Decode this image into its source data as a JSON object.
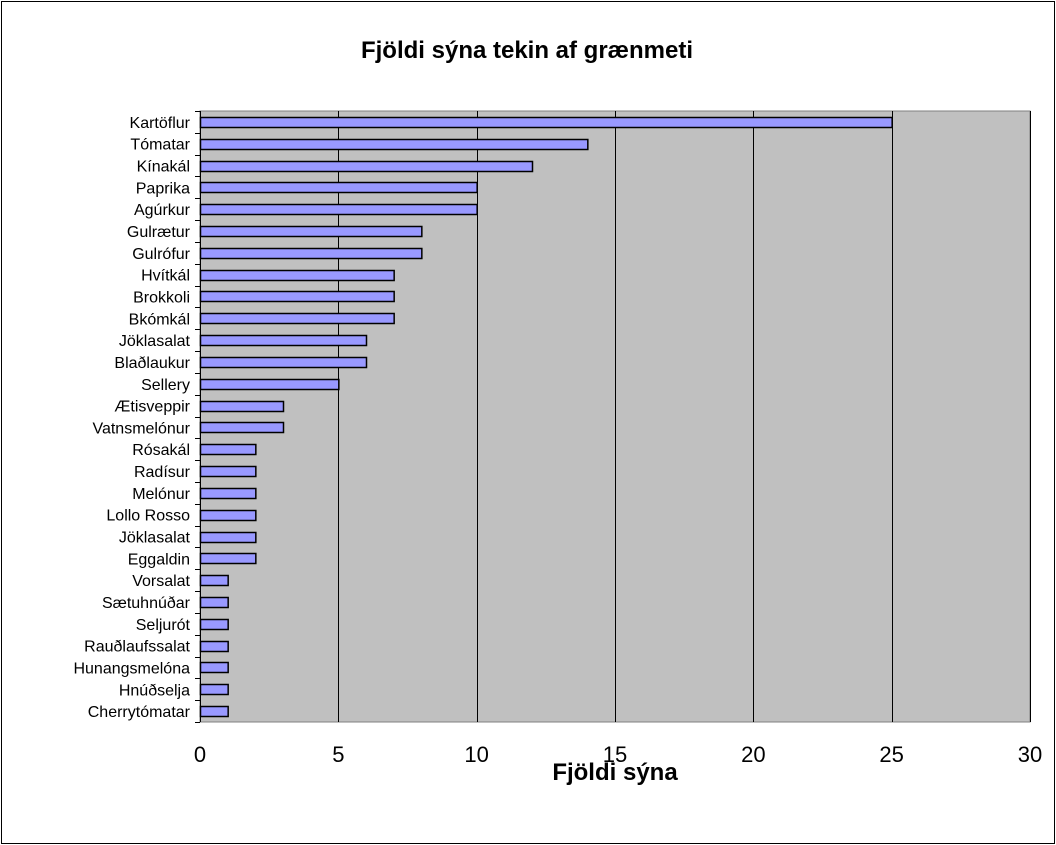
{
  "chart_data": {
    "type": "bar",
    "orientation": "horizontal",
    "title": "Fjöldi sýna tekin af grænmeti",
    "xlabel": "Fjöldi sýna",
    "ylabel": "",
    "xlim": [
      0,
      30
    ],
    "x_ticks": [
      0,
      5,
      10,
      15,
      20,
      25,
      30
    ],
    "x_tick_labels": [
      "0",
      "5",
      "10",
      "15",
      "20",
      "25",
      "30"
    ],
    "grid": "vertical",
    "legend": "none",
    "categories": [
      "Kartöflur",
      "Tómatar",
      "Kínakál",
      "Paprika",
      "Agúrkur",
      "Gulrætur",
      "Gulrófur",
      "Hvítkál",
      "Brokkoli",
      "Bkómkál",
      "Jöklasalat",
      "Blaðlaukur",
      "Sellery",
      "Ætisveppir",
      "Vatnsmelónur",
      "Rósakál",
      "Radísur",
      "Melónur",
      "Lollo Rosso",
      "Jöklasalat",
      "Eggaldin",
      "Vorsalat",
      "Sætuhnúðar",
      "Seljurót",
      "Rauðlaufssalat",
      "Hunangsmelóna",
      "Hnúðselja",
      "Cherrytómatar"
    ],
    "values": [
      25,
      14,
      12,
      10,
      10,
      8,
      8,
      7,
      7,
      7,
      6,
      6,
      5,
      3,
      3,
      2,
      2,
      2,
      2,
      2,
      2,
      1,
      1,
      1,
      1,
      1,
      1,
      1
    ],
    "colors": {
      "plot_background": "#c0c0c0",
      "bar_fill": "#9999ff",
      "bar_stroke": "#000000",
      "grid": "#000000"
    }
  }
}
